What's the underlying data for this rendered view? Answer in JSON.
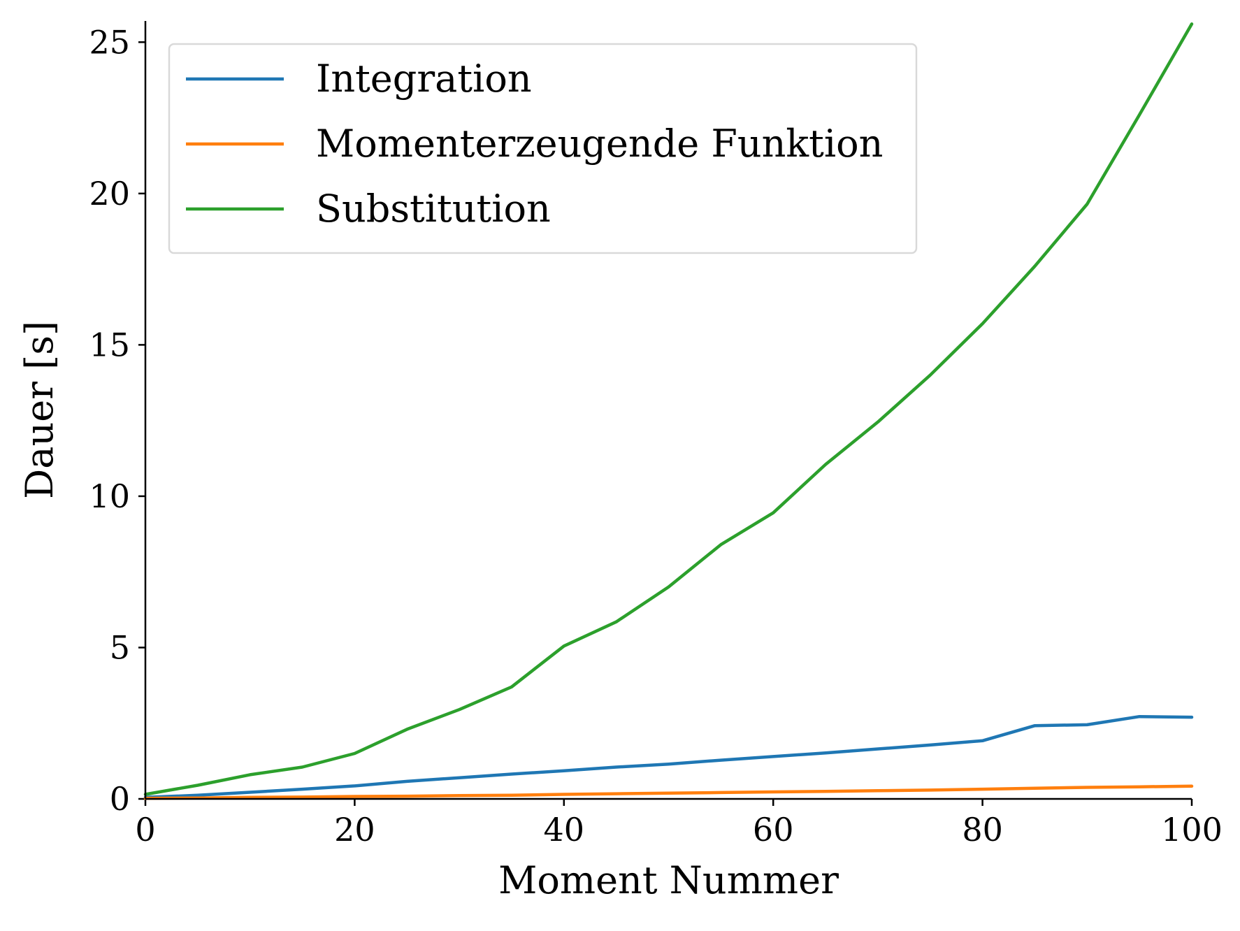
{
  "chart_data": {
    "type": "line",
    "title": "",
    "xlabel": "Moment Nummer",
    "ylabel": "Dauer [s]",
    "xlim": [
      0,
      100
    ],
    "ylim": [
      0,
      25.7
    ],
    "xticks": [
      0,
      20,
      40,
      60,
      80,
      100
    ],
    "yticks": [
      0,
      5,
      10,
      15,
      20,
      25
    ],
    "grid": false,
    "legend_position": "top-left",
    "x": [
      0,
      5,
      10,
      15,
      20,
      25,
      30,
      35,
      40,
      45,
      50,
      55,
      60,
      65,
      70,
      75,
      80,
      85,
      90,
      95,
      100
    ],
    "series": [
      {
        "name": "Integration",
        "color": "#1f77b4",
        "values": [
          0.05,
          0.12,
          0.22,
          0.32,
          0.43,
          0.58,
          0.7,
          0.82,
          0.93,
          1.05,
          1.15,
          1.28,
          1.4,
          1.52,
          1.65,
          1.78,
          1.92,
          2.42,
          2.45,
          2.72,
          2.7
        ]
      },
      {
        "name": "Momenterzeugende Funktion",
        "color": "#ff7f0e",
        "values": [
          0.02,
          0.03,
          0.05,
          0.06,
          0.08,
          0.09,
          0.11,
          0.12,
          0.15,
          0.17,
          0.19,
          0.21,
          0.23,
          0.25,
          0.27,
          0.29,
          0.32,
          0.35,
          0.38,
          0.4,
          0.42
        ]
      },
      {
        "name": "Substitution",
        "color": "#2ca02c",
        "values": [
          0.15,
          0.45,
          0.8,
          1.05,
          1.5,
          2.3,
          2.95,
          3.7,
          5.05,
          5.85,
          7.0,
          8.4,
          9.45,
          11.05,
          12.45,
          14.0,
          15.7,
          17.6,
          19.65,
          22.6,
          25.6
        ]
      }
    ]
  }
}
